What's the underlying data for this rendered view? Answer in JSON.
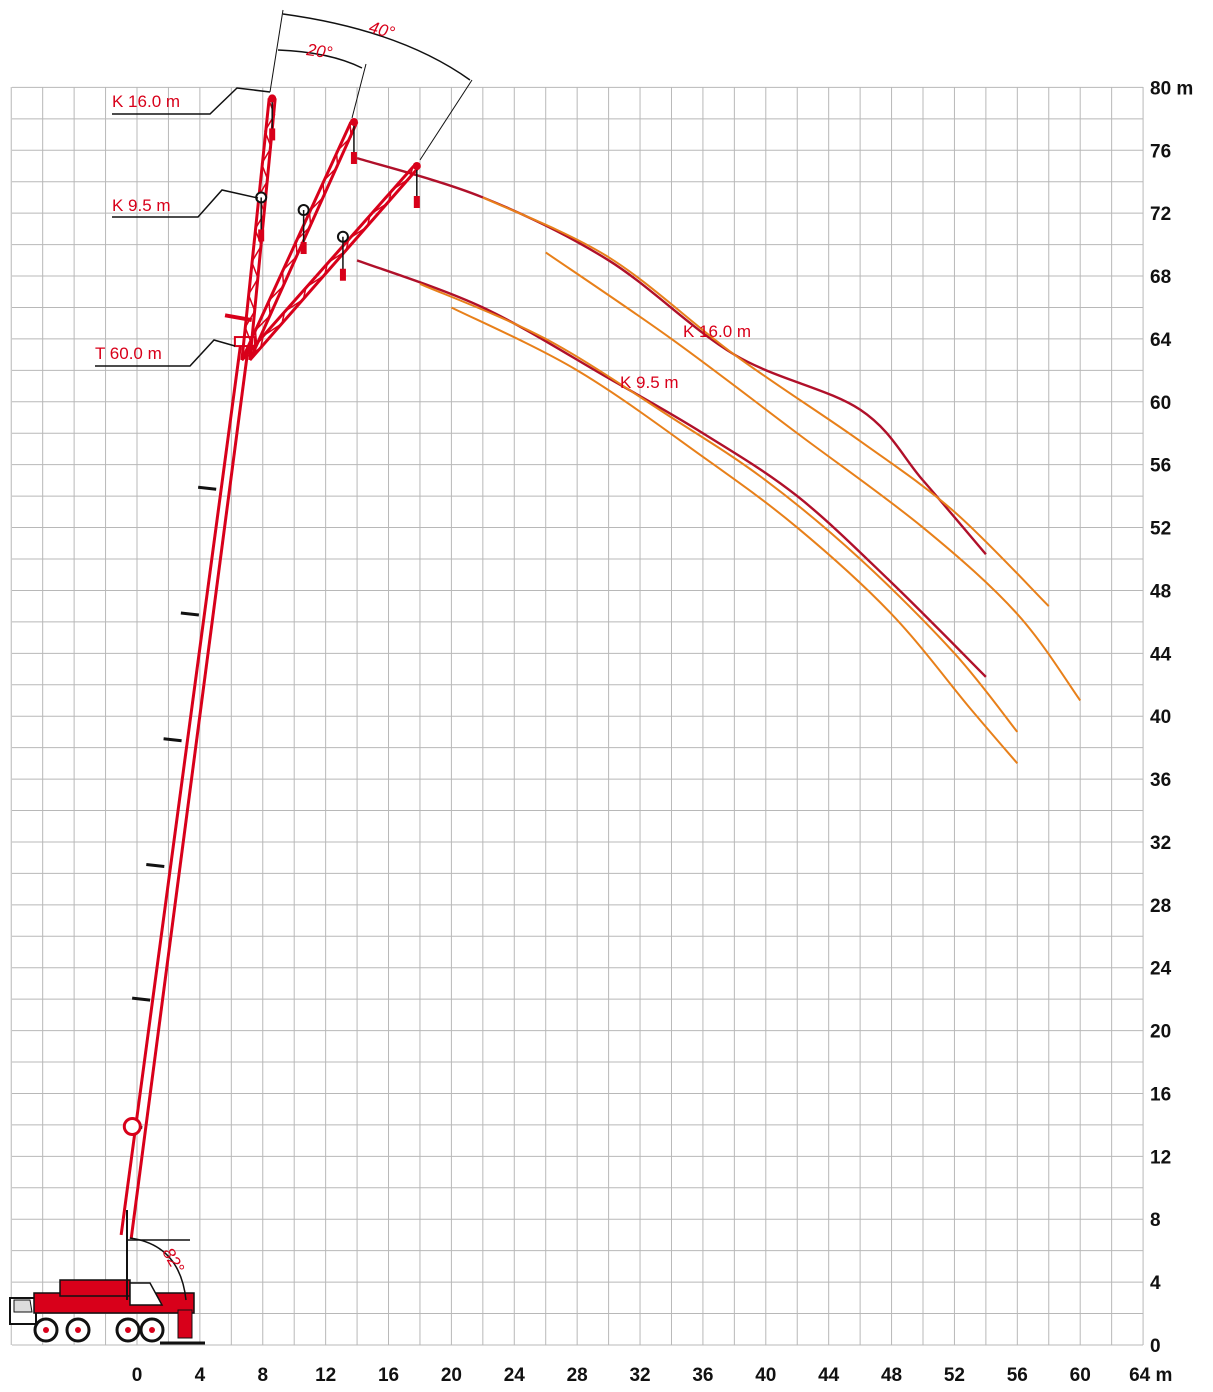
{
  "chart_data": {
    "type": "crane working range diagram",
    "x_unit": "m",
    "y_unit": "m",
    "x_ticks": [
      "0",
      "4",
      "8",
      "12",
      "16",
      "20",
      "24",
      "28",
      "32",
      "36",
      "40",
      "44",
      "48",
      "52",
      "56",
      "60",
      "64 m"
    ],
    "y_ticks": [
      "0",
      "4",
      "8",
      "12",
      "16",
      "20",
      "24",
      "28",
      "32",
      "36",
      "40",
      "44",
      "48",
      "52",
      "56",
      "60",
      "64",
      "68",
      "72",
      "76",
      "80 m"
    ],
    "xlim": [
      -8,
      64
    ],
    "ylim": [
      0,
      80
    ],
    "grid": true,
    "colors": {
      "boom": "#d8001a",
      "reach_dark": "#b0102a",
      "reach_orange": "#e8801a",
      "grid": "#b8b8b8",
      "ink": "#111111"
    },
    "labels": {
      "k16_left": "K 16.0 m",
      "k95_left": "K 9.5 m",
      "t60_left": "T 60.0 m",
      "k16_curve": "K 16.0 m",
      "k95_curve": "K 9.5 m",
      "angle_20": "20°",
      "angle_40": "40°",
      "angle_82": "82°"
    },
    "boom": {
      "pivot": [
        -0.5,
        7
      ],
      "telescope_head": [
        6.8,
        63.8
      ],
      "jib_tips": {
        "k16_0deg": [
          8.6,
          79.3
        ],
        "k16_20deg": [
          13.8,
          77.8
        ],
        "k16_40deg": [
          17.8,
          75.0
        ],
        "k95_0deg": [
          7.9,
          73.0
        ],
        "k95_20deg": [
          10.6,
          72.2
        ],
        "k95_40deg": [
          13.1,
          70.5
        ]
      }
    },
    "reach_curves": [
      {
        "name": "K 16.0 m",
        "color": "dark",
        "x": [
          14,
          22,
          30,
          38,
          46,
          50,
          54
        ],
        "y": [
          75.5,
          73.0,
          69.0,
          63.0,
          59.5,
          55.0,
          50.3
        ]
      },
      {
        "name": "K 16.0 m",
        "color": "orange",
        "x": [
          22,
          30,
          38,
          46,
          52,
          58
        ],
        "y": [
          73.0,
          69.2,
          63.0,
          57.5,
          53.0,
          47.0
        ]
      },
      {
        "name": "K 16.0 m",
        "color": "orange",
        "x": [
          26,
          34,
          42,
          50,
          56,
          60
        ],
        "y": [
          69.5,
          64.0,
          58.0,
          52.0,
          46.5,
          41.0
        ]
      },
      {
        "name": "K 9.5 m",
        "color": "dark",
        "x": [
          14,
          22,
          30,
          36,
          42,
          48,
          54
        ],
        "y": [
          69.0,
          66.0,
          61.5,
          58.0,
          54.0,
          48.5,
          42.5
        ]
      },
      {
        "name": "K 9.5 m",
        "color": "orange",
        "x": [
          18,
          26,
          34,
          40,
          46,
          52,
          56
        ],
        "y": [
          67.5,
          64.0,
          59.0,
          55.0,
          50.0,
          44.0,
          39.0
        ]
      },
      {
        "name": "K 9.5 m",
        "color": "orange",
        "x": [
          20,
          28,
          36,
          42,
          48,
          53,
          56
        ],
        "y": [
          66.0,
          62.0,
          56.5,
          52.0,
          46.5,
          40.5,
          37.0
        ]
      }
    ]
  }
}
